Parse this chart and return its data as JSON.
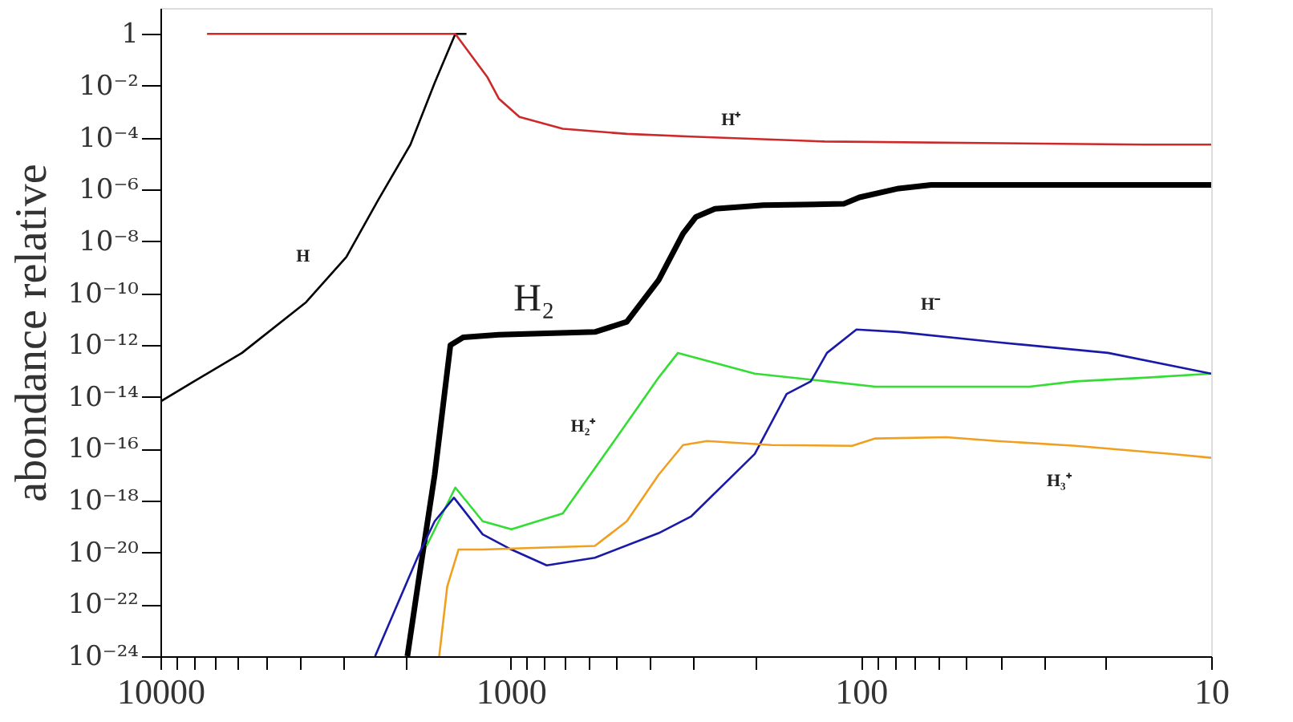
{
  "chart_data": {
    "type": "line",
    "ylabel": "abondance relative",
    "log": "xy",
    "grid": false,
    "marker": "none",
    "line_style": "solid",
    "xlim": [
      10000,
      10
    ],
    "ylim": [
      1e-24,
      10
    ],
    "xticks": [
      10000,
      {
        "value": 9000,
        "label": null
      },
      {
        "value": 8000,
        "label": null
      },
      {
        "value": 7000,
        "label": null
      },
      {
        "value": 6000,
        "label": null
      },
      {
        "value": 5000,
        "label": null
      },
      {
        "value": 4000,
        "label": null
      },
      {
        "value": 3000,
        "label": null
      },
      {
        "value": 2000,
        "label": null
      },
      1000,
      {
        "value": 900,
        "label": null
      },
      {
        "value": 800,
        "label": null
      },
      {
        "value": 700,
        "label": null
      },
      {
        "value": 600,
        "label": null
      },
      {
        "value": 500,
        "label": null
      },
      {
        "value": 400,
        "label": null
      },
      {
        "value": 300,
        "label": null
      },
      {
        "value": 200,
        "label": null
      },
      100,
      {
        "value": 90,
        "label": null
      },
      {
        "value": 80,
        "label": null
      },
      {
        "value": 70,
        "label": null
      },
      {
        "value": 60,
        "label": null
      },
      {
        "value": 50,
        "label": null
      },
      {
        "value": 40,
        "label": null
      },
      {
        "value": 30,
        "label": null
      },
      {
        "value": 20,
        "label": null
      },
      10
    ],
    "yticks": [
      1,
      {
        "value": 0.01,
        "label": "10⁻²"
      },
      {
        "value": 0.0001,
        "label": "10⁻⁴"
      },
      {
        "value": 1e-06,
        "label": "10⁻⁶"
      },
      {
        "value": 1e-08,
        "label": "10⁻⁸"
      },
      {
        "value": 1e-10,
        "label": "10⁻¹⁰"
      },
      {
        "value": 1e-12,
        "label": "10⁻¹²"
      },
      {
        "value": 1e-14,
        "label": "10⁻¹⁴"
      },
      {
        "value": 1e-16,
        "label": "10⁻¹⁶"
      },
      {
        "value": 1e-18,
        "label": "10⁻¹⁸"
      },
      {
        "value": 1e-20,
        "label": "10⁻²⁰"
      },
      {
        "value": 1e-22,
        "label": "10⁻²²"
      },
      {
        "value": 1e-24,
        "label": "10⁻²⁴"
      }
    ],
    "series": [
      {
        "name": "H",
        "color": "#000000",
        "x": [
          10000,
          8017,
          5848,
          3838,
          2946,
          2388,
          1933,
          1648,
          1439,
          1337
        ],
        "values": [
          6.6e-15,
          4e-14,
          5e-13,
          4.5e-11,
          2.5e-09,
          4e-07,
          5.4e-05,
          0.013,
          1,
          1
        ]
      },
      {
        "name": "H⁺",
        "color": "#cc2a2a",
        "x": [
          7360,
          1439,
          1164,
          1081,
          944,
          710,
          466,
          305,
          127,
          15.5,
          10
        ],
        "values": [
          1,
          1,
          0.021,
          0.0032,
          0.00063,
          0.00022,
          0.00014,
          0.00011,
          7.1e-05,
          5.4e-05,
          5.4e-05
        ]
      },
      {
        "name": "H₂",
        "color": "#000000",
        "x": [
          1972,
          1833,
          1648,
          1486,
          1366,
          1081,
          575,
          466,
          378,
          322,
          296,
          261,
          190,
          112,
          101,
          78,
          63,
          10
        ],
        "values": [
          1e-24,
          7.9e-22,
          1e-17,
          1e-12,
          2e-12,
          2.5e-12,
          3.2e-12,
          7.9e-12,
          3.2e-10,
          2e-08,
          8.7e-08,
          1.8e-07,
          2.5e-07,
          2.8e-07,
          5e-07,
          1.1e-06,
          1.5e-06,
          1.5e-06
        ]
      },
      {
        "name": "H₂⁺",
        "color": "#33dd33",
        "x": [
          1738,
          1439,
          1202,
          995,
          710,
          518,
          378,
          333,
          201,
          125,
          91,
          33,
          24.4,
          15.2,
          10
        ],
        "values": [
          1.8e-20,
          3.2e-18,
          1.6e-19,
          7.9e-20,
          3.2e-19,
          1.3e-16,
          5.6e-14,
          5e-13,
          7.9e-14,
          4e-14,
          2.5e-14,
          2.5e-14,
          4e-14,
          5.6e-14,
          7.9e-14
        ]
      },
      {
        "name": "H⁻",
        "color": "#1a1aa8",
        "x": [
          2438,
          1833,
          1648,
          1452,
          1202,
          995,
          789,
          575,
          378,
          305,
          201,
          163,
          139,
          125,
          103,
          78,
          41,
          19.7,
          10
        ],
        "values": [
          1e-24,
          7.9e-21,
          1.6e-19,
          1.3e-18,
          5e-20,
          1.3e-20,
          3.2e-21,
          6.3e-21,
          5.6e-20,
          2.5e-19,
          6.3e-17,
          1.3e-14,
          4e-14,
          5e-13,
          4e-12,
          3.2e-12,
          1.3e-12,
          5e-13,
          7.9e-14
        ]
      },
      {
        "name": "H₃⁺",
        "color": "#f0a020",
        "x": [
          1600,
          1517,
          1409,
          1202,
          575,
          466,
          378,
          322,
          275,
          180,
          106,
          91,
          57,
          41,
          24.4,
          12.9,
          10
        ],
        "values": [
          1e-24,
          5e-22,
          1.3e-20,
          1.3e-20,
          1.8e-20,
          1.6e-19,
          1e-17,
          1.4e-16,
          2e-16,
          1.4e-16,
          1.3e-16,
          2.5e-16,
          2.8e-16,
          2e-16,
          1.3e-16,
          6.3e-17,
          4.5e-17
        ]
      }
    ]
  }
}
